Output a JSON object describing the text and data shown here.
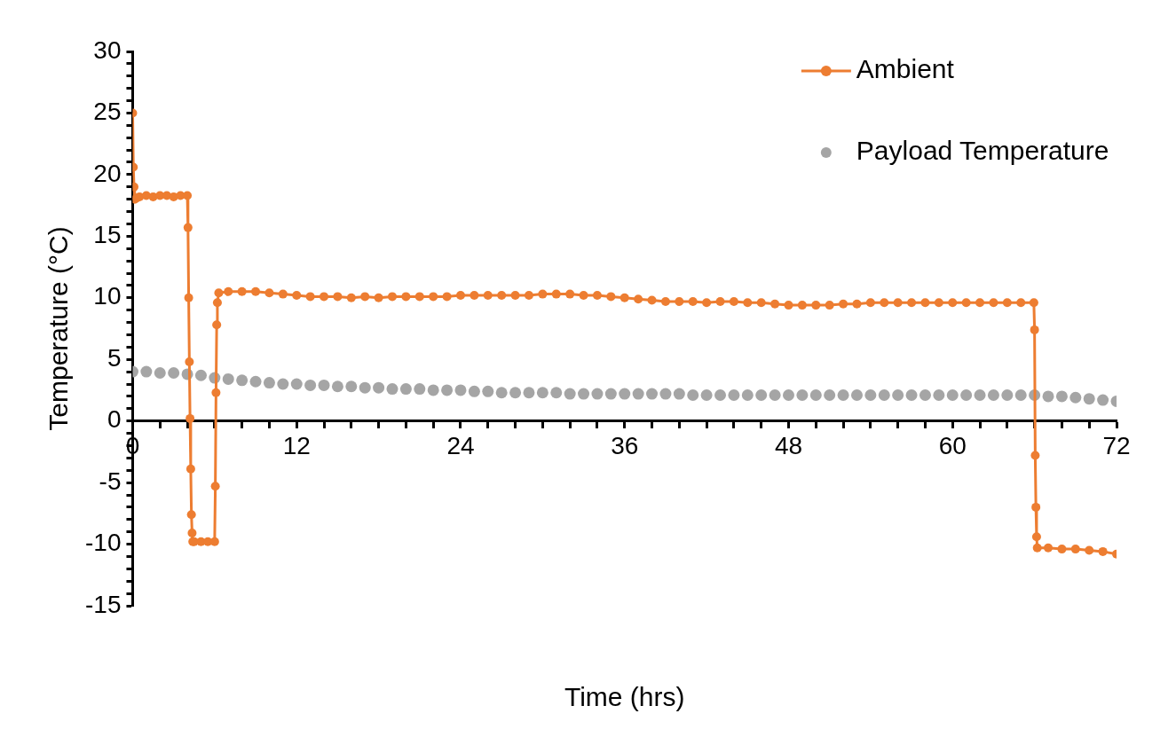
{
  "chart_data": {
    "type": "line",
    "xlabel": "Time (hrs)",
    "ylabel": "Temperature (°C)",
    "xlim": [
      0,
      72
    ],
    "ylim": [
      -15,
      30
    ],
    "xticks": [
      0,
      {
        "value": 2,
        "label": null
      },
      {
        "value": 4,
        "label": null
      },
      {
        "value": 6,
        "label": null
      },
      {
        "value": 8,
        "label": null
      },
      {
        "value": 10,
        "label": null
      },
      12,
      {
        "value": 14,
        "label": null
      },
      {
        "value": 16,
        "label": null
      },
      {
        "value": 18,
        "label": null
      },
      {
        "value": 20,
        "label": null
      },
      {
        "value": 22,
        "label": null
      },
      24,
      {
        "value": 26,
        "label": null
      },
      {
        "value": 28,
        "label": null
      },
      {
        "value": 30,
        "label": null
      },
      {
        "value": 32,
        "label": null
      },
      {
        "value": 34,
        "label": null
      },
      36,
      {
        "value": 38,
        "label": null
      },
      {
        "value": 40,
        "label": null
      },
      {
        "value": 42,
        "label": null
      },
      {
        "value": 44,
        "label": null
      },
      {
        "value": 46,
        "label": null
      },
      48,
      {
        "value": 50,
        "label": null
      },
      {
        "value": 52,
        "label": null
      },
      {
        "value": 54,
        "label": null
      },
      {
        "value": 56,
        "label": null
      },
      {
        "value": 58,
        "label": null
      },
      60,
      {
        "value": 62,
        "label": null
      },
      {
        "value": 64,
        "label": null
      },
      {
        "value": 66,
        "label": null
      },
      {
        "value": 68,
        "label": null
      },
      {
        "value": 70,
        "label": null
      },
      72
    ],
    "yticks": [
      -15,
      {
        "value": -14,
        "label": null
      },
      {
        "value": -13,
        "label": null
      },
      {
        "value": -12,
        "label": null
      },
      {
        "value": -11,
        "label": null
      },
      -10,
      {
        "value": -9,
        "label": null
      },
      {
        "value": -8,
        "label": null
      },
      {
        "value": -7,
        "label": null
      },
      {
        "value": -6,
        "label": null
      },
      -5,
      {
        "value": -4,
        "label": null
      },
      {
        "value": -3,
        "label": null
      },
      {
        "value": -2,
        "label": null
      },
      {
        "value": -1,
        "label": null
      },
      0,
      {
        "value": 1,
        "label": null
      },
      {
        "value": 2,
        "label": null
      },
      {
        "value": 3,
        "label": null
      },
      {
        "value": 4,
        "label": null
      },
      5,
      {
        "value": 6,
        "label": null
      },
      {
        "value": 7,
        "label": null
      },
      {
        "value": 8,
        "label": null
      },
      {
        "value": 9,
        "label": null
      },
      10,
      {
        "value": 11,
        "label": null
      },
      {
        "value": 12,
        "label": null
      },
      {
        "value": 13,
        "label": null
      },
      {
        "value": 14,
        "label": null
      },
      15,
      {
        "value": 16,
        "label": null
      },
      {
        "value": 17,
        "label": null
      },
      {
        "value": 18,
        "label": null
      },
      {
        "value": 19,
        "label": null
      },
      20,
      {
        "value": 21,
        "label": null
      },
      {
        "value": 22,
        "label": null
      },
      {
        "value": 23,
        "label": null
      },
      {
        "value": 24,
        "label": null
      },
      25,
      {
        "value": 26,
        "label": null
      },
      {
        "value": 27,
        "label": null
      },
      {
        "value": 28,
        "label": null
      },
      {
        "value": 29,
        "label": null
      },
      30
    ],
    "grid": false,
    "legend": "top right",
    "marker": "circle",
    "series": [
      {
        "name": "Ambient",
        "color": "#ed7d31",
        "x": [
          0,
          0.05,
          0.1,
          0.15,
          0.3,
          0.5,
          1,
          1.5,
          2,
          2.5,
          3,
          3.5,
          4,
          4.05,
          4.1,
          4.15,
          4.2,
          4.25,
          4.3,
          4.35,
          4.4,
          4.5,
          5,
          5.5,
          6,
          6.05,
          6.1,
          6.15,
          6.2,
          6.3,
          7,
          8,
          9,
          10,
          11,
          12,
          13,
          14,
          15,
          16,
          17,
          18,
          19,
          20,
          21,
          22,
          23,
          24,
          25,
          26,
          27,
          28,
          29,
          30,
          31,
          32,
          33,
          34,
          35,
          36,
          37,
          38,
          39,
          40,
          41,
          42,
          43,
          44,
          45,
          46,
          47,
          48,
          49,
          50,
          51,
          52,
          53,
          54,
          55,
          56,
          57,
          58,
          59,
          60,
          61,
          62,
          63,
          64,
          65,
          65.95,
          66,
          66.05,
          66.1,
          66.15,
          66.2,
          67,
          68,
          69,
          70,
          71,
          72
        ],
        "values": [
          25,
          20.6,
          19,
          18,
          18.1,
          18.2,
          18.3,
          18.2,
          18.3,
          18.3,
          18.2,
          18.3,
          18.3,
          15.7,
          10,
          4.8,
          0.2,
          -3.9,
          -7.6,
          -9.1,
          -9.8,
          -9.8,
          -9.8,
          -9.8,
          -9.8,
          -5.3,
          2.3,
          7.8,
          9.6,
          10.4,
          10.5,
          10.5,
          10.5,
          10.4,
          10.3,
          10.2,
          10.1,
          10.1,
          10.1,
          10.0,
          10.1,
          10.0,
          10.1,
          10.1,
          10.1,
          10.1,
          10.1,
          10.2,
          10.2,
          10.2,
          10.2,
          10.2,
          10.2,
          10.3,
          10.3,
          10.3,
          10.2,
          10.2,
          10.1,
          10.0,
          9.9,
          9.8,
          9.7,
          9.7,
          9.7,
          9.6,
          9.7,
          9.7,
          9.6,
          9.6,
          9.5,
          9.4,
          9.4,
          9.4,
          9.4,
          9.5,
          9.5,
          9.6,
          9.6,
          9.6,
          9.6,
          9.6,
          9.6,
          9.6,
          9.6,
          9.6,
          9.6,
          9.6,
          9.6,
          9.6,
          7.4,
          -2.8,
          -7.0,
          -9.4,
          -10.3,
          -10.3,
          -10.4,
          -10.4,
          -10.5,
          -10.6,
          -10.8
        ]
      },
      {
        "name": "Payload Temperature",
        "type": "scatter",
        "color": "#a5a5a5",
        "x": [
          0,
          1,
          2,
          3,
          4,
          5,
          6,
          7,
          8,
          9,
          10,
          11,
          12,
          13,
          14,
          15,
          16,
          17,
          18,
          19,
          20,
          21,
          22,
          23,
          24,
          25,
          26,
          27,
          28,
          29,
          30,
          31,
          32,
          33,
          34,
          35,
          36,
          37,
          38,
          39,
          40,
          41,
          42,
          43,
          44,
          45,
          46,
          47,
          48,
          49,
          50,
          51,
          52,
          53,
          54,
          55,
          56,
          57,
          58,
          59,
          60,
          61,
          62,
          63,
          64,
          65,
          66,
          67,
          68,
          69,
          70,
          71,
          72
        ],
        "values": [
          4.0,
          4.0,
          3.9,
          3.9,
          3.8,
          3.7,
          3.5,
          3.4,
          3.3,
          3.2,
          3.1,
          3.0,
          3.0,
          2.9,
          2.9,
          2.8,
          2.8,
          2.7,
          2.7,
          2.6,
          2.6,
          2.6,
          2.5,
          2.5,
          2.5,
          2.4,
          2.4,
          2.3,
          2.3,
          2.3,
          2.3,
          2.3,
          2.2,
          2.2,
          2.2,
          2.2,
          2.2,
          2.2,
          2.2,
          2.2,
          2.2,
          2.1,
          2.1,
          2.1,
          2.1,
          2.1,
          2.1,
          2.1,
          2.1,
          2.1,
          2.1,
          2.1,
          2.1,
          2.1,
          2.1,
          2.1,
          2.1,
          2.1,
          2.1,
          2.1,
          2.1,
          2.1,
          2.1,
          2.1,
          2.1,
          2.1,
          2.1,
          2.0,
          2.0,
          1.9,
          1.8,
          1.7,
          1.6
        ]
      }
    ]
  }
}
